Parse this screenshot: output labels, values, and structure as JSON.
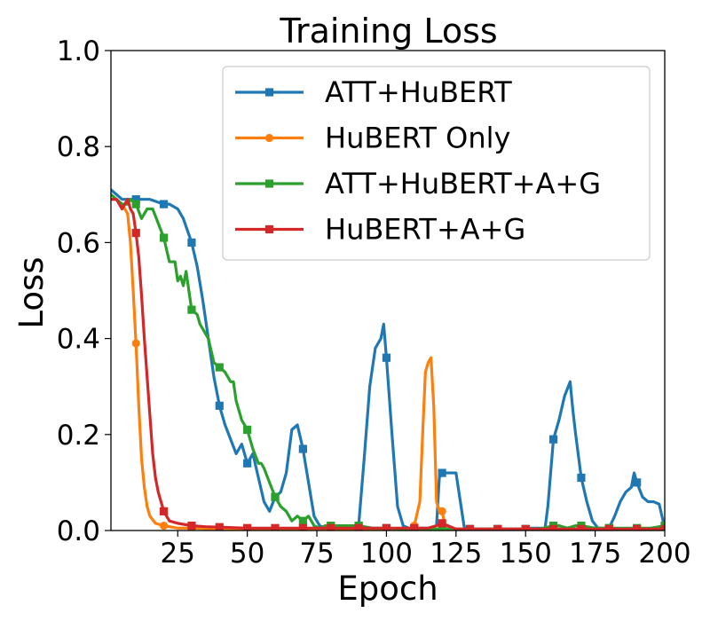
{
  "chart_data": {
    "type": "line",
    "title": "Training Loss",
    "xlabel": "Epoch",
    "ylabel": "Loss",
    "xlim": [
      1,
      200
    ],
    "ylim": [
      0,
      1.0
    ],
    "xticks": [
      25,
      50,
      75,
      100,
      125,
      150,
      175,
      200
    ],
    "yticks": [
      0.0,
      0.2,
      0.4,
      0.6,
      0.8,
      1.0
    ],
    "ytick_labels": [
      "0.0",
      "0.2",
      "0.4",
      "0.6",
      "0.8",
      "1.0"
    ],
    "grid": false,
    "legend": "top-right",
    "series": [
      {
        "name": "ATT+HuBERT",
        "color": "#1f77b4",
        "marker": "square",
        "x": [
          1,
          5,
          10,
          15,
          20,
          22,
          25,
          27,
          30,
          32,
          34,
          36,
          38,
          40,
          42,
          44,
          46,
          48,
          50,
          52,
          54,
          56,
          58,
          60,
          62,
          64,
          66,
          68,
          70,
          72,
          74,
          76,
          78,
          80,
          85,
          88,
          90,
          92,
          94,
          96,
          98,
          99,
          100,
          102,
          104,
          106,
          108,
          110,
          112,
          114,
          116,
          118,
          119,
          120,
          125,
          128,
          130,
          135,
          140,
          145,
          150,
          152,
          155,
          157,
          158,
          160,
          162,
          164,
          166,
          167,
          168,
          170,
          172,
          174,
          176,
          178,
          180,
          182,
          184,
          186,
          188,
          189,
          190,
          192,
          194,
          196,
          198,
          200
        ],
        "y": [
          0.71,
          0.69,
          0.69,
          0.69,
          0.68,
          0.68,
          0.67,
          0.65,
          0.6,
          0.55,
          0.48,
          0.4,
          0.32,
          0.26,
          0.22,
          0.19,
          0.16,
          0.18,
          0.14,
          0.16,
          0.11,
          0.06,
          0.04,
          0.07,
          0.08,
          0.12,
          0.21,
          0.22,
          0.17,
          0.1,
          0.03,
          0.01,
          0.005,
          0.005,
          0.005,
          0.005,
          0.01,
          0.15,
          0.3,
          0.38,
          0.4,
          0.43,
          0.36,
          0.2,
          0.05,
          0.01,
          0.005,
          0.005,
          0.005,
          0.005,
          0.005,
          0.01,
          0.11,
          0.12,
          0.12,
          0.005,
          0.003,
          0.003,
          0.003,
          0.003,
          0.003,
          0.005,
          0.005,
          0.005,
          0.05,
          0.19,
          0.23,
          0.28,
          0.31,
          0.25,
          0.2,
          0.11,
          0.06,
          0.02,
          0.005,
          0.005,
          0.005,
          0.03,
          0.06,
          0.08,
          0.09,
          0.12,
          0.1,
          0.07,
          0.06,
          0.06,
          0.055,
          0.005
        ],
        "marker_every": 10
      },
      {
        "name": "HuBERT Only",
        "color": "#ff7f0e",
        "marker": "circle",
        "x": [
          1,
          3,
          5,
          7,
          8,
          9,
          10,
          11,
          12,
          13,
          14,
          15,
          17,
          20,
          25,
          30,
          40,
          50,
          60,
          70,
          80,
          90,
          100,
          105,
          108,
          110,
          112,
          113,
          114,
          115,
          116,
          117,
          118,
          119,
          120,
          121,
          125,
          130,
          140,
          150,
          160,
          170,
          180,
          190,
          200
        ],
        "y": [
          0.69,
          0.69,
          0.68,
          0.66,
          0.6,
          0.5,
          0.39,
          0.26,
          0.15,
          0.09,
          0.05,
          0.03,
          0.015,
          0.01,
          0.005,
          0.005,
          0.003,
          0.003,
          0.003,
          0.003,
          0.003,
          0.003,
          0.003,
          0.003,
          0.003,
          0.01,
          0.06,
          0.2,
          0.33,
          0.35,
          0.36,
          0.26,
          0.06,
          0.04,
          0.04,
          0.01,
          0.003,
          0.003,
          0.003,
          0.003,
          0.003,
          0.003,
          0.003,
          0.003,
          0.003
        ],
        "marker_every": 10
      },
      {
        "name": "ATT+HuBERT+A+G",
        "color": "#2ca02c",
        "marker": "square",
        "x": [
          1,
          3,
          5,
          7,
          8,
          10,
          12,
          14,
          16,
          18,
          20,
          22,
          24,
          25,
          26,
          27,
          28,
          29,
          30,
          32,
          33,
          35,
          36,
          38,
          40,
          42,
          44,
          45,
          46,
          48,
          50,
          52,
          54,
          55,
          56,
          58,
          60,
          62,
          64,
          66,
          68,
          70,
          72,
          74,
          76,
          78,
          80,
          85,
          90,
          95,
          100,
          110,
          120,
          130,
          140,
          150,
          155,
          160,
          162,
          165,
          168,
          170,
          175,
          180,
          185,
          190,
          195,
          200
        ],
        "y": [
          0.7,
          0.69,
          0.68,
          0.68,
          0.69,
          0.68,
          0.65,
          0.67,
          0.67,
          0.64,
          0.61,
          0.56,
          0.56,
          0.52,
          0.53,
          0.51,
          0.54,
          0.5,
          0.46,
          0.45,
          0.43,
          0.41,
          0.4,
          0.35,
          0.34,
          0.33,
          0.31,
          0.31,
          0.27,
          0.23,
          0.21,
          0.17,
          0.14,
          0.14,
          0.13,
          0.1,
          0.07,
          0.05,
          0.04,
          0.02,
          0.03,
          0.02,
          0.03,
          0.01,
          0.005,
          0.01,
          0.01,
          0.01,
          0.01,
          0.005,
          0.005,
          0.003,
          0.003,
          0.003,
          0.003,
          0.003,
          0.003,
          0.01,
          0.01,
          0.005,
          0.01,
          0.01,
          0.005,
          0.005,
          0.005,
          0.005,
          0.005,
          0.01
        ],
        "marker_every": 10
      },
      {
        "name": "HuBERT+A+G",
        "color": "#d62728",
        "marker": "square",
        "x": [
          1,
          3,
          5,
          6,
          7,
          8,
          9,
          10,
          11,
          12,
          13,
          14,
          15,
          16,
          17,
          18,
          19,
          20,
          21,
          22,
          25,
          30,
          35,
          40,
          50,
          60,
          70,
          80,
          90,
          100,
          110,
          115,
          118,
          120,
          125,
          130,
          140,
          150,
          160,
          170,
          180,
          190,
          200
        ],
        "y": [
          0.69,
          0.69,
          0.67,
          0.68,
          0.69,
          0.67,
          0.66,
          0.62,
          0.57,
          0.49,
          0.4,
          0.32,
          0.24,
          0.16,
          0.11,
          0.08,
          0.06,
          0.04,
          0.03,
          0.02,
          0.015,
          0.01,
          0.008,
          0.007,
          0.005,
          0.005,
          0.005,
          0.005,
          0.005,
          0.005,
          0.005,
          0.005,
          0.01,
          0.015,
          0.003,
          0.003,
          0.003,
          0.003,
          0.003,
          0.003,
          0.003,
          0.003,
          0.003
        ],
        "marker_every": 10
      }
    ]
  }
}
